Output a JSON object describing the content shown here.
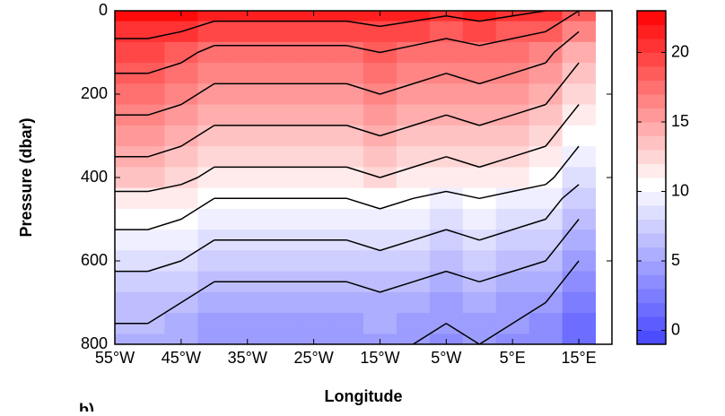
{
  "chart_data": {
    "type": "contour",
    "xlabel": "Longitude",
    "ylabel": "Pressure (dbar)",
    "panel_label": "b)",
    "x": [
      -55,
      -50,
      -45,
      -40,
      -35,
      -30,
      -25,
      -20,
      -15,
      -10,
      -5,
      0,
      5,
      10,
      15
    ],
    "y": [
      0,
      50,
      100,
      150,
      200,
      250,
      300,
      350,
      400,
      450,
      500,
      550,
      600,
      650,
      700,
      750,
      800
    ],
    "z": [
      [
        22.5,
        22.5,
        22,
        21,
        21,
        21,
        21,
        21,
        21.5,
        21,
        20.5,
        21,
        20.5,
        20,
        18
      ],
      [
        20.5,
        20.5,
        20,
        19,
        19,
        19,
        19,
        19,
        19.5,
        19,
        18.5,
        19,
        18.5,
        18,
        16
      ],
      [
        19,
        19,
        18.5,
        17.5,
        17.5,
        17.5,
        17.5,
        17.5,
        18,
        17.5,
        17,
        17.5,
        17,
        16.5,
        14.5
      ],
      [
        18,
        18,
        17.5,
        16.5,
        16.5,
        16.5,
        16.5,
        16.5,
        17,
        16.5,
        16,
        16.5,
        16,
        15.5,
        13.5
      ],
      [
        17,
        17,
        16.5,
        15.5,
        15.5,
        15.5,
        15.5,
        15.5,
        16,
        15.5,
        15,
        15.5,
        15,
        14.5,
        12.5
      ],
      [
        16,
        16,
        15.5,
        14.5,
        14.5,
        14.5,
        14.5,
        14.5,
        15,
        14.5,
        14,
        14.5,
        14,
        13.5,
        11.5
      ],
      [
        15,
        15,
        14.5,
        13.5,
        13.5,
        13.5,
        13.5,
        13.5,
        14,
        13.5,
        13,
        13.5,
        13,
        12.5,
        10.5
      ],
      [
        14,
        14,
        13.5,
        12.5,
        12.5,
        12.5,
        12.5,
        12.5,
        13,
        12.5,
        12,
        12.5,
        12,
        11.5,
        9.5
      ],
      [
        13,
        13,
        12.5,
        11.5,
        11.5,
        11.5,
        11.5,
        11.5,
        12,
        11.5,
        11,
        11.5,
        11,
        10.5,
        8.5
      ],
      [
        11.5,
        11.5,
        11,
        10,
        10,
        10,
        10,
        10,
        10.5,
        10,
        9.5,
        10,
        9.5,
        9,
        7
      ],
      [
        10.5,
        10.5,
        10,
        9,
        9,
        9,
        9,
        9,
        9.5,
        9,
        8.5,
        9,
        8.5,
        8,
        6
      ],
      [
        9.5,
        9.5,
        9,
        8,
        8,
        8,
        8,
        8,
        8.5,
        8,
        7.5,
        8,
        7.5,
        7,
        5
      ],
      [
        8.5,
        8.5,
        8,
        7,
        7,
        7,
        7,
        7,
        7.5,
        7,
        6.5,
        7,
        6.5,
        6,
        4
      ],
      [
        7.5,
        7.5,
        7,
        6,
        6,
        6,
        6,
        6,
        6.5,
        6,
        5.5,
        6,
        5.5,
        5,
        3
      ],
      [
        6.5,
        6.5,
        6,
        5,
        5,
        5,
        5,
        5,
        5.5,
        5,
        4.5,
        5,
        4.5,
        4,
        2
      ],
      [
        6,
        6,
        5.5,
        4.5,
        4.5,
        4.5,
        4.5,
        4.5,
        5,
        4.5,
        4,
        4.5,
        4,
        3.5,
        1.5
      ],
      [
        5.5,
        5.5,
        5,
        4,
        4,
        4,
        4,
        4,
        4.5,
        4,
        3.5,
        4,
        3.5,
        3,
        1
      ]
    ],
    "contour_levels": [
      4,
      6,
      8,
      10,
      12,
      14,
      16,
      18,
      20
    ],
    "contour_color": "#000000",
    "xlim": [
      -55,
      20
    ],
    "xticks": [
      {
        "value": -55,
        "label": "55°W"
      },
      {
        "value": -45,
        "label": "45°W"
      },
      {
        "value": -35,
        "label": "35°W"
      },
      {
        "value": -25,
        "label": "25°W"
      },
      {
        "value": -15,
        "label": "15°W"
      },
      {
        "value": -5,
        "label": "5°W"
      },
      {
        "value": 5,
        "label": "5°E"
      },
      {
        "value": 15,
        "label": "15°E"
      }
    ],
    "ylim": [
      800,
      0
    ],
    "yticks": [
      0,
      200,
      400,
      600,
      800
    ],
    "clim": [
      -1,
      23
    ],
    "cstep": 1,
    "cmap": [
      "#4444ff",
      "#ffffff",
      "#ff0000"
    ],
    "cmap_center": 10.5,
    "cticks": [
      0,
      5,
      10,
      15,
      20
    ]
  }
}
